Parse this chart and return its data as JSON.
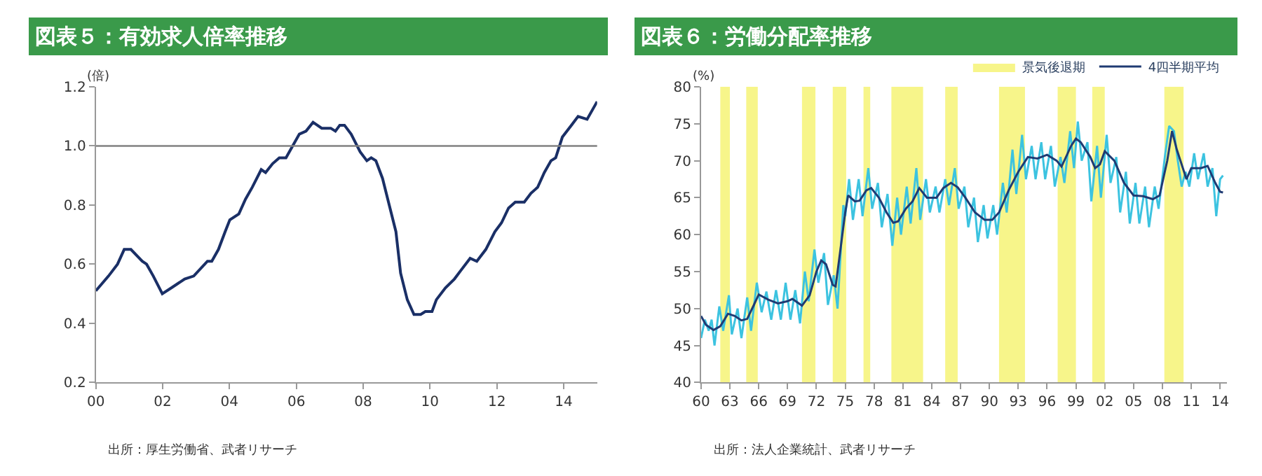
{
  "chart_data": [
    {
      "type": "line",
      "title": "図表５：有効求人倍率推移",
      "ylabel": "(倍)",
      "annotations": [
        "出所：厚生労働省、武者リサーチ"
      ],
      "xlim": [
        2000,
        2015
      ],
      "xticks": [
        {
          "value": 2000,
          "label": "00"
        },
        {
          "value": 2002,
          "label": "02"
        },
        {
          "value": 2004,
          "label": "04"
        },
        {
          "value": 2006,
          "label": "06"
        },
        {
          "value": 2008,
          "label": "08"
        },
        {
          "value": 2010,
          "label": "10"
        },
        {
          "value": 2012,
          "label": "12"
        },
        {
          "value": 2014,
          "label": "14"
        }
      ],
      "ylim": [
        0.2,
        1.2
      ],
      "yticks": [
        0.2,
        0.4,
        0.6,
        0.8,
        {
          "value": 1.0,
          "label": "1.0"
        },
        1.2
      ],
      "ref_lines": [
        {
          "axis": "y",
          "value": 1.0,
          "color": "#808080"
        }
      ],
      "legend": false,
      "marker": "none",
      "line_style": "solid",
      "series": [
        {
          "color": "#1a2f66",
          "x": [
            2000.0,
            2000.38,
            2000.65,
            2000.85,
            2001.05,
            2001.39,
            2001.52,
            2001.72,
            2001.99,
            2002.26,
            2002.66,
            2002.93,
            2003.34,
            2003.47,
            2003.67,
            2003.87,
            2004.01,
            2004.28,
            2004.48,
            2004.68,
            2004.95,
            2005.08,
            2005.29,
            2005.49,
            2005.69,
            2005.89,
            2006.09,
            2006.29,
            2006.5,
            2006.76,
            2007.03,
            2007.17,
            2007.3,
            2007.44,
            2007.64,
            2007.91,
            2008.11,
            2008.24,
            2008.38,
            2008.58,
            2008.78,
            2008.98,
            2009.12,
            2009.32,
            2009.52,
            2009.72,
            2009.86,
            2010.06,
            2010.19,
            2010.46,
            2010.73,
            2010.93,
            2011.2,
            2011.4,
            2011.67,
            2011.94,
            2012.14,
            2012.35,
            2012.55,
            2012.82,
            2013.02,
            2013.22,
            2013.42,
            2013.62,
            2013.76,
            2013.96,
            2014.23,
            2014.43,
            2014.7,
            2015.0
          ],
          "values": [
            0.51,
            0.56,
            0.6,
            0.65,
            0.65,
            0.61,
            0.6,
            0.56,
            0.5,
            0.52,
            0.55,
            0.56,
            0.61,
            0.61,
            0.65,
            0.71,
            0.75,
            0.77,
            0.82,
            0.86,
            0.92,
            0.91,
            0.94,
            0.96,
            0.96,
            1.0,
            1.04,
            1.05,
            1.08,
            1.06,
            1.06,
            1.05,
            1.07,
            1.07,
            1.04,
            0.98,
            0.95,
            0.96,
            0.95,
            0.89,
            0.8,
            0.71,
            0.57,
            0.48,
            0.43,
            0.43,
            0.44,
            0.44,
            0.48,
            0.52,
            0.55,
            0.58,
            0.62,
            0.61,
            0.65,
            0.71,
            0.74,
            0.79,
            0.81,
            0.81,
            0.84,
            0.86,
            0.91,
            0.95,
            0.96,
            1.03,
            1.07,
            1.1,
            1.09,
            1.15
          ]
        }
      ]
    },
    {
      "type": "line",
      "title": "図表６：労働分配率推移",
      "ylabel": "(%)",
      "annotations": [
        "出所：法人企業統計、武者リサーチ"
      ],
      "xlim": [
        1960,
        2014.7
      ],
      "xticks": [
        {
          "value": 1960,
          "label": "60"
        },
        {
          "value": 1963,
          "label": "63"
        },
        {
          "value": 1966,
          "label": "66"
        },
        {
          "value": 1969,
          "label": "69"
        },
        {
          "value": 1972,
          "label": "72"
        },
        {
          "value": 1975,
          "label": "75"
        },
        {
          "value": 1978,
          "label": "78"
        },
        {
          "value": 1981,
          "label": "81"
        },
        {
          "value": 1984,
          "label": "84"
        },
        {
          "value": 1987,
          "label": "87"
        },
        {
          "value": 1990,
          "label": "90"
        },
        {
          "value": 1993,
          "label": "93"
        },
        {
          "value": 1996,
          "label": "96"
        },
        {
          "value": 1999,
          "label": "99"
        },
        {
          "value": 2002,
          "label": "02"
        },
        {
          "value": 2005,
          "label": "05"
        },
        {
          "value": 2008,
          "label": "08"
        },
        {
          "value": 2011,
          "label": "11"
        },
        {
          "value": 2014,
          "label": "14"
        }
      ],
      "ylim": [
        40,
        80
      ],
      "yticks": [
        40,
        45,
        50,
        55,
        60,
        65,
        70,
        75,
        80
      ],
      "legend": "top right",
      "marker": "none",
      "line_style": "solid",
      "bands": [
        {
          "axis": "x",
          "from": 1962.0,
          "to": 1963.0,
          "label": "景気後退期",
          "color": "#f7f58a"
        },
        {
          "axis": "x",
          "from": 1964.7,
          "to": 1965.9,
          "color": "#f7f58a"
        },
        {
          "axis": "x",
          "from": 1970.5,
          "to": 1971.9,
          "color": "#f7f58a"
        },
        {
          "axis": "x",
          "from": 1973.7,
          "to": 1975.1,
          "color": "#f7f58a"
        },
        {
          "axis": "x",
          "from": 1976.9,
          "to": 1977.6,
          "color": "#f7f58a"
        },
        {
          "axis": "x",
          "from": 1979.8,
          "to": 1983.1,
          "color": "#f7f58a"
        },
        {
          "axis": "x",
          "from": 1985.4,
          "to": 1986.7,
          "color": "#f7f58a"
        },
        {
          "axis": "x",
          "from": 1991.0,
          "to": 1993.7,
          "color": "#f7f58a"
        },
        {
          "axis": "x",
          "from": 1997.1,
          "to": 1999.0,
          "color": "#f7f58a"
        },
        {
          "axis": "x",
          "from": 2000.7,
          "to": 2002.0,
          "color": "#f7f58a"
        },
        {
          "axis": "x",
          "from": 2008.2,
          "to": 2010.2,
          "color": "#f7f58a"
        }
      ],
      "series": [
        {
          "color": "#3cc3e0",
          "x": [
            1960.0,
            1960.4,
            1960.8,
            1961.1,
            1961.4,
            1961.9,
            1962.3,
            1962.9,
            1963.2,
            1963.8,
            1964.2,
            1964.8,
            1965.2,
            1965.8,
            1966.3,
            1966.8,
            1967.3,
            1967.8,
            1968.3,
            1968.8,
            1969.3,
            1969.8,
            1970.3,
            1970.8,
            1971.2,
            1971.8,
            1972.2,
            1972.8,
            1973.2,
            1973.8,
            1974.2,
            1974.8,
            1975.0,
            1975.4,
            1975.8,
            1976.4,
            1976.8,
            1977.4,
            1977.8,
            1978.4,
            1978.8,
            1979.4,
            1979.9,
            1980.4,
            1980.8,
            1981.4,
            1981.8,
            1982.4,
            1982.8,
            1983.4,
            1983.8,
            1984.4,
            1984.8,
            1985.4,
            1985.8,
            1986.4,
            1986.8,
            1987.4,
            1987.8,
            1988.4,
            1988.8,
            1989.4,
            1989.8,
            1990.4,
            1990.8,
            1991.4,
            1991.8,
            1992.4,
            1992.8,
            1993.4,
            1993.8,
            1994.4,
            1994.8,
            1995.4,
            1995.8,
            1996.4,
            1996.8,
            1997.4,
            1997.8,
            1998.4,
            1998.8,
            1999.2,
            1999.6,
            2000.2,
            2000.6,
            2001.2,
            2001.6,
            2002.2,
            2002.6,
            2003.2,
            2003.6,
            2004.2,
            2004.6,
            2005.2,
            2005.6,
            2006.2,
            2006.6,
            2007.2,
            2007.6,
            2008.3,
            2008.7,
            2009.2,
            2009.6,
            2010.0,
            2010.4,
            2010.8,
            2011.3,
            2011.7,
            2012.3,
            2012.7,
            2013.2,
            2013.6,
            2014.0,
            2014.3
          ],
          "values": [
            46,
            48.5,
            47,
            48.5,
            45,
            50.3,
            47,
            51.8,
            46.5,
            50,
            46,
            51.5,
            47,
            53.5,
            49.5,
            52.3,
            48.5,
            52.5,
            48.5,
            53.5,
            48.5,
            52.5,
            48,
            55,
            51,
            58,
            53.5,
            57.5,
            50.5,
            54.5,
            50,
            64,
            62.5,
            67.5,
            62,
            67.5,
            62.5,
            69,
            63.5,
            67,
            61,
            65.5,
            58.5,
            65,
            60,
            66.5,
            61.5,
            69,
            62,
            67.5,
            63,
            66.5,
            63,
            67.5,
            64,
            69,
            63.5,
            66.5,
            61,
            65,
            59,
            64,
            59.5,
            64,
            60,
            67,
            63,
            71.5,
            65.5,
            73.5,
            67.5,
            72,
            67.5,
            72.5,
            67.5,
            72,
            66.5,
            70.5,
            67,
            74,
            69,
            75.3,
            70,
            72.5,
            64.5,
            72,
            65,
            73.5,
            67,
            70.5,
            63,
            68.5,
            61.5,
            67,
            61.5,
            66.5,
            61,
            66.5,
            63.5,
            71,
            74.7,
            74,
            70,
            66.5,
            68.5,
            66.5,
            71,
            67.5,
            71,
            66.5,
            69,
            62.5,
            67.5,
            68
          ]
        },
        {
          "name": "4四半期平均",
          "color": "#1f3b73",
          "x": [
            1960,
            1960.5,
            1961.3,
            1962,
            1962.8,
            1963.5,
            1964.2,
            1964.8,
            1965.5,
            1966.0,
            1967,
            1968,
            1969,
            1969.5,
            1970.5,
            1971.3,
            1972,
            1972.5,
            1973,
            1973.7,
            1974,
            1974.5,
            1975,
            1975.3,
            1976,
            1976.5,
            1977.2,
            1977.7,
            1978.5,
            1979.3,
            1980,
            1980.5,
            1981.3,
            1982,
            1982.7,
            1983.5,
            1984.5,
            1985.2,
            1986,
            1986.7,
            1987.5,
            1988.5,
            1989.5,
            1990.3,
            1991,
            1992,
            1993,
            1994,
            1995,
            1996,
            1997,
            1997.5,
            1998.5,
            1999,
            1999.5,
            2000.5,
            2001,
            2001.5,
            2002,
            2003,
            2004,
            2005,
            2006,
            2007,
            2007.7,
            2008.5,
            2009,
            2009.5,
            2010.5,
            2011,
            2012,
            2012.7,
            2013.5,
            2014.0,
            2014.3
          ],
          "values": [
            49.0,
            47.8,
            47.1,
            47.6,
            49.3,
            49.0,
            48.4,
            48.6,
            50.5,
            51.9,
            51.2,
            50.7,
            51.0,
            51.3,
            50.4,
            51.8,
            55.0,
            56.5,
            56.0,
            53.2,
            53.0,
            58.0,
            63.0,
            65.3,
            64.5,
            64.6,
            66.0,
            66.3,
            65.0,
            63.0,
            61.6,
            61.8,
            63.5,
            64.5,
            66.3,
            65.0,
            65.0,
            66.3,
            67.0,
            66.4,
            65.0,
            63.0,
            62.0,
            62.0,
            63.0,
            66.0,
            68.5,
            70.5,
            70.3,
            70.8,
            70.0,
            69.2,
            72.0,
            73.0,
            72.5,
            70.5,
            69.0,
            69.5,
            71.3,
            70.0,
            67.0,
            65.3,
            65.2,
            64.8,
            65.3,
            70.0,
            74.0,
            71.5,
            67.5,
            69.0,
            69.0,
            69.3,
            67.0,
            65.8,
            65.7
          ]
        }
      ]
    }
  ]
}
